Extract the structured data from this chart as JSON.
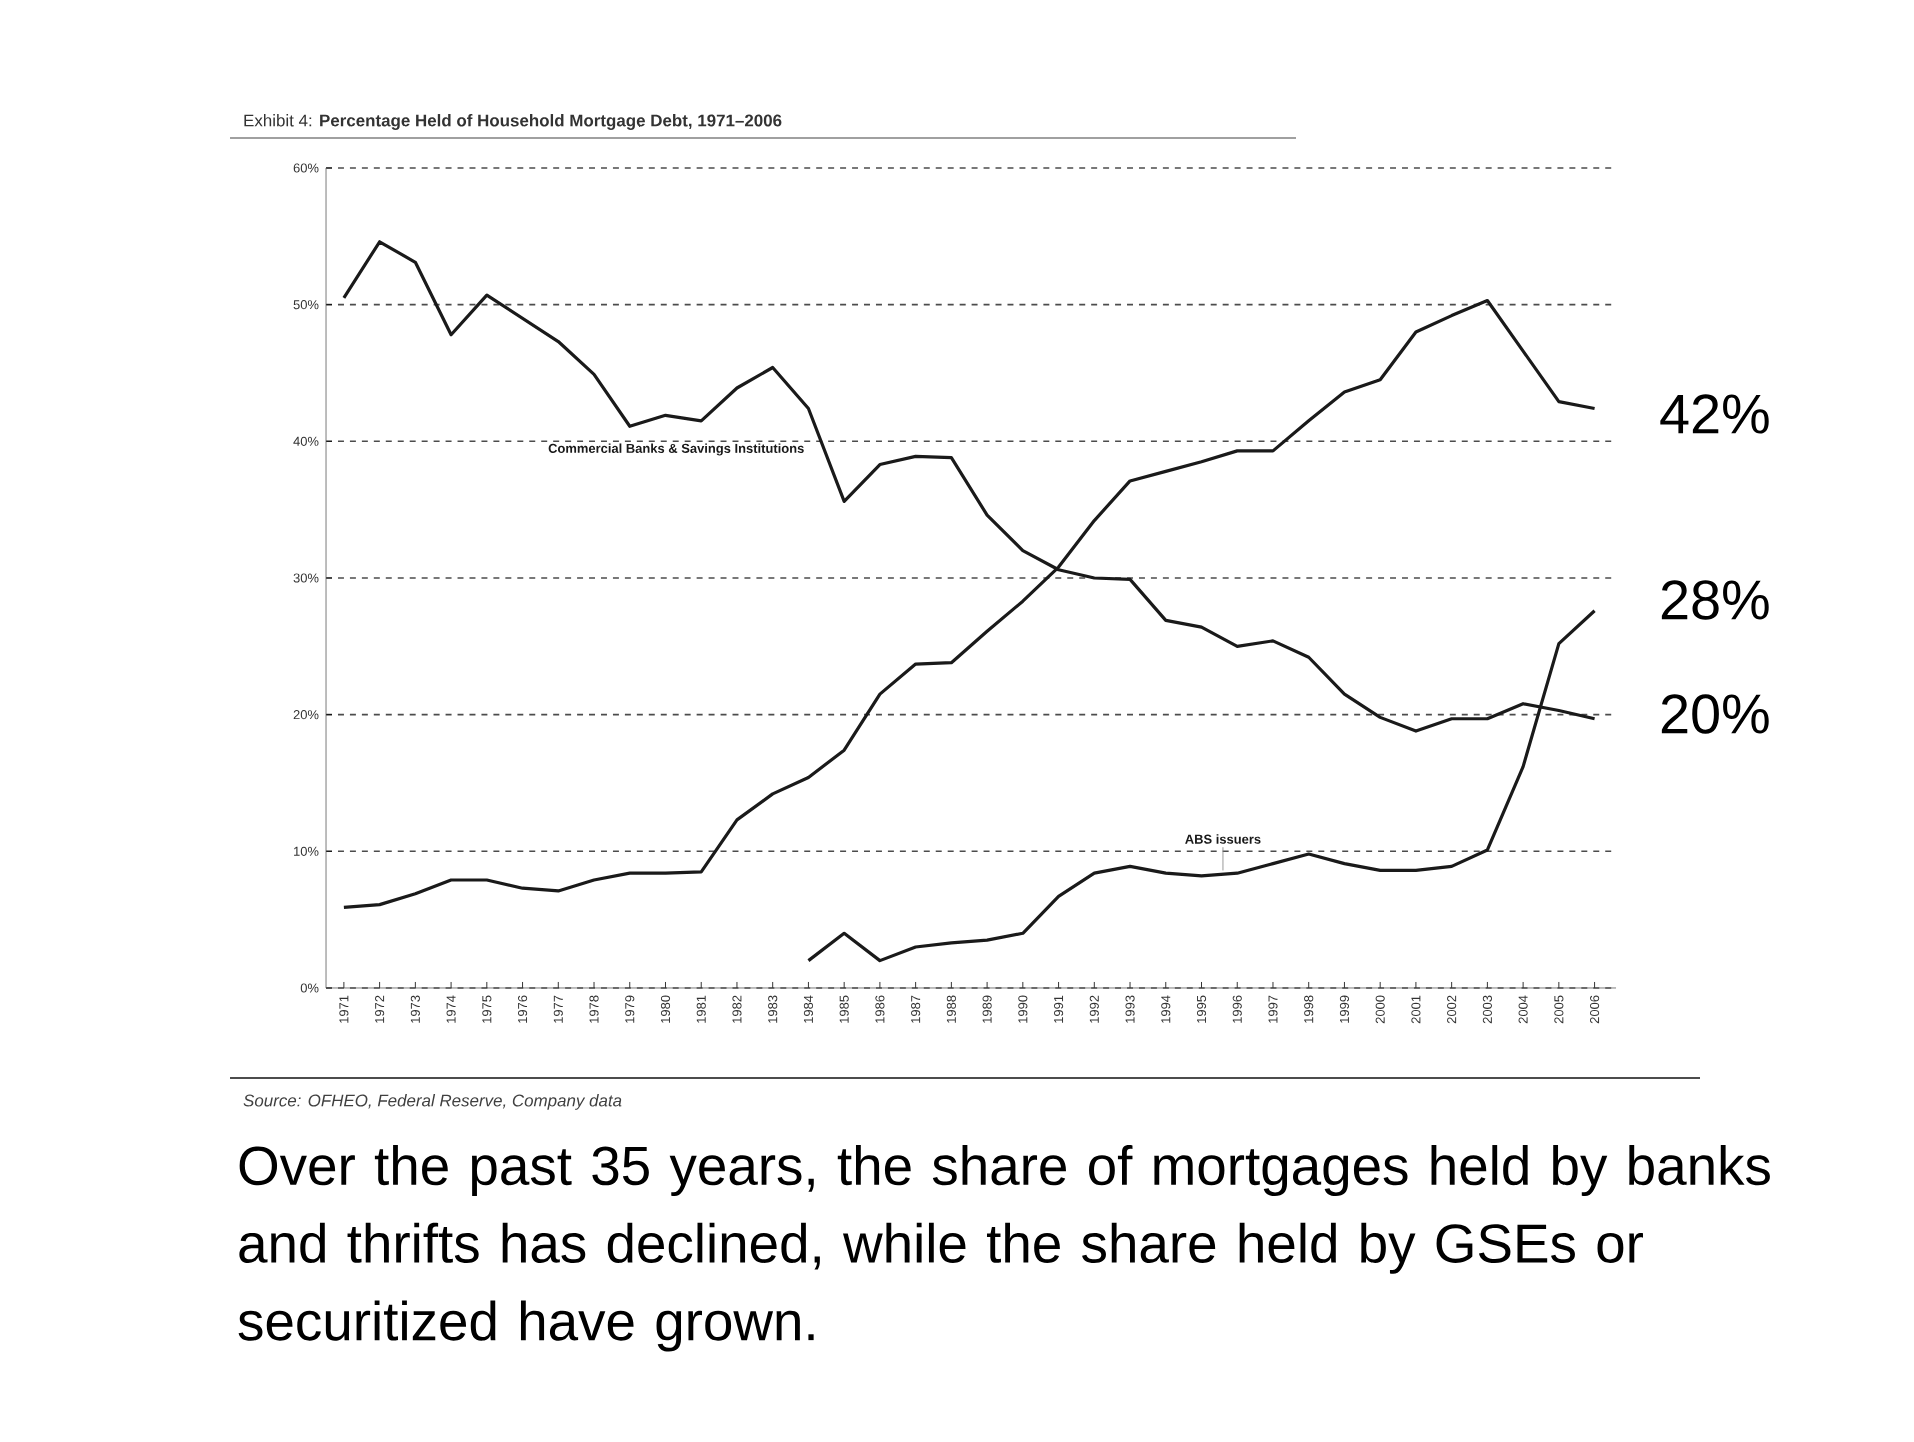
{
  "chart_data": {
    "type": "line",
    "title": "Exhibit 4: **Percentage Held of Household Mortgage Debt, 1971–2006**",
    "x": [
      1971,
      1972,
      1973,
      1974,
      1975,
      1976,
      1977,
      1978,
      1979,
      1980,
      1981,
      1982,
      1983,
      1984,
      1985,
      1986,
      1987,
      1988,
      1989,
      1990,
      1991,
      1992,
      1993,
      1994,
      1995,
      1996,
      1997,
      1998,
      1999,
      2000,
      2001,
      2002,
      2003,
      2004,
      2005,
      2006
    ],
    "series": [
      {
        "name": "Commercial Banks & Savings Institutions",
        "color": "#1a1a1a",
        "values": [
          50.5,
          54.6,
          53.1,
          47.8,
          50.7,
          49.0,
          47.3,
          44.9,
          41.1,
          41.9,
          41.5,
          43.9,
          45.4,
          42.4,
          35.6,
          38.3,
          38.9,
          38.8,
          34.6,
          32.0,
          30.6,
          30.0,
          29.9,
          26.9,
          26.4,
          25.0,
          25.4,
          24.2,
          21.5,
          19.8,
          18.8,
          19.7,
          19.7,
          20.8,
          20.3,
          19.7
        ]
      },
      {
        "color": "#1a1a1a",
        "values": [
          5.9,
          6.1,
          6.9,
          7.9,
          7.9,
          7.3,
          7.1,
          7.9,
          8.4,
          8.4,
          8.5,
          12.3,
          14.2,
          15.4,
          17.4,
          21.5,
          23.7,
          23.8,
          26.1,
          28.3,
          30.8,
          34.2,
          37.1,
          37.8,
          38.5,
          39.3,
          39.3,
          41.5,
          43.6,
          44.5,
          48.0,
          49.2,
          50.3,
          46.6,
          42.9,
          42.4
        ]
      },
      {
        "name": "ABS issuers",
        "color": "#1a1a1a",
        "values": [
          null,
          null,
          null,
          null,
          null,
          null,
          null,
          null,
          null,
          null,
          null,
          null,
          null,
          2.0,
          4.0,
          2.0,
          3.0,
          3.3,
          3.5,
          4.0,
          6.7,
          8.4,
          8.9,
          8.4,
          8.2,
          8.4,
          9.1,
          9.8,
          9.1,
          8.6,
          8.6,
          8.9,
          10.1,
          16.2,
          25.2,
          27.6
        ]
      }
    ],
    "xlim": [
      1970.5,
      2006.6
    ],
    "xticks": [
      1971,
      1972,
      1973,
      1974,
      1975,
      1976,
      1977,
      1978,
      1979,
      1980,
      1981,
      1982,
      1983,
      1984,
      1985,
      1986,
      1987,
      1988,
      1989,
      1990,
      1991,
      1992,
      1993,
      1994,
      1995,
      1996,
      1997,
      1998,
      1999,
      2000,
      2001,
      2002,
      2003,
      2004,
      2005,
      2006
    ],
    "ylim": [
      0,
      60
    ],
    "yticks": [
      {
        "value": 0,
        "label": "0%"
      },
      {
        "value": 10,
        "label": "10%"
      },
      {
        "value": 20,
        "label": "20%"
      },
      {
        "value": 30,
        "label": "30%"
      },
      {
        "value": 40,
        "label": "40%"
      },
      {
        "value": 50,
        "label": "50%"
      },
      {
        "value": 60,
        "label": "60%"
      }
    ],
    "grid": "y",
    "marker": "none",
    "line_style": "solid",
    "annotations": [
      "Source: OFHEO, Federal Reserve, Company data",
      "Over the past 35 years, the share of mortgages held by banks and thrifts has declined, while the share held by GSEs or securitized have grown.",
      "42%",
      "28%",
      "20%"
    ]
  }
}
